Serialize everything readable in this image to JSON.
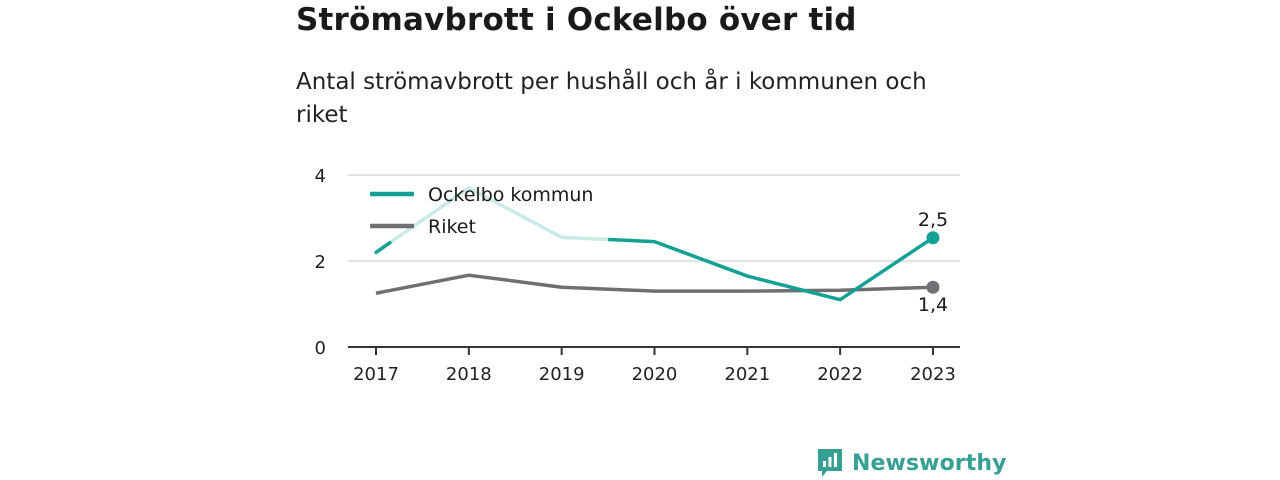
{
  "title": "Strömavbrott i Ockelbo över tid",
  "subtitle": "Antal strömavbrott per hushåll och år i kommunen och riket",
  "brand": "Newsworthy",
  "colors": {
    "ockelbo": "#12a193",
    "ockelbo_faded": "#c9ebe6",
    "riket": "#6f6f73",
    "grid": "#dcdcdc",
    "axis": "#333333",
    "brand": "#36a094"
  },
  "chart_data": {
    "type": "line",
    "categories": [
      "2017",
      "2018",
      "2019",
      "2020",
      "2021",
      "2022",
      "2023"
    ],
    "y_ticks": [
      "0",
      "2",
      "4"
    ],
    "ylim": [
      0,
      4
    ],
    "grid": true,
    "legend_position": "top-left",
    "series": [
      {
        "name": "Ockelbo kommun",
        "values": [
          2.2,
          3.7,
          2.55,
          2.45,
          1.65,
          1.1,
          2.54
        ],
        "end_label": "2,5",
        "faded_segment": {
          "from": 2017,
          "to": 2019.5
        }
      },
      {
        "name": "Riket",
        "values": [
          1.25,
          1.67,
          1.39,
          1.3,
          1.3,
          1.32,
          1.39
        ],
        "end_label": "1,4"
      }
    ]
  }
}
